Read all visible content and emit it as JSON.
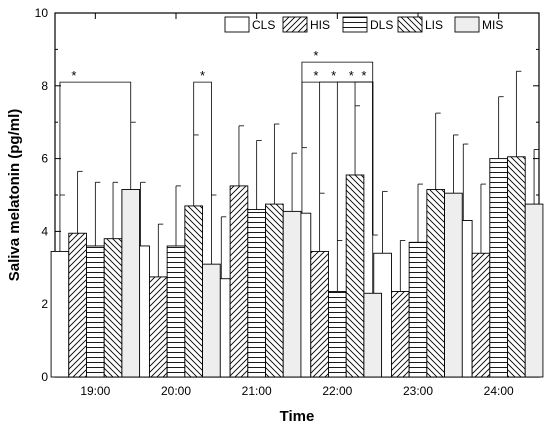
{
  "chart_data": {
    "type": "bar",
    "categories": [
      "19:00",
      "20:00",
      "21:00",
      "22:00",
      "23:00",
      "24:00"
    ],
    "series": [
      {
        "name": "CLS",
        "pattern": "blank",
        "values": [
          3.45,
          3.6,
          2.7,
          4.5,
          3.4,
          4.3
        ],
        "errors": [
          1.55,
          1.75,
          1.7,
          1.8,
          1.7,
          2.1
        ]
      },
      {
        "name": "HIS",
        "pattern": "diagonal-up",
        "values": [
          3.95,
          2.75,
          5.25,
          3.45,
          2.35,
          3.4
        ],
        "errors": [
          1.7,
          1.45,
          1.65,
          1.6,
          1.4,
          1.9
        ]
      },
      {
        "name": "DLS",
        "pattern": "horizontal",
        "values": [
          3.6,
          3.6,
          4.6,
          2.35,
          3.7,
          6.0
        ],
        "errors": [
          1.75,
          1.65,
          1.9,
          1.4,
          1.6,
          1.7
        ]
      },
      {
        "name": "LIS",
        "pattern": "diagonal-down",
        "values": [
          3.8,
          4.7,
          4.75,
          5.55,
          5.15,
          6.05
        ],
        "errors": [
          1.55,
          1.95,
          2.2,
          1.9,
          2.1,
          2.35
        ]
      },
      {
        "name": "MIS",
        "pattern": "dense-vertical",
        "values": [
          5.15,
          3.1,
          4.55,
          2.3,
          5.05,
          4.75
        ],
        "errors": [
          1.85,
          1.9,
          1.6,
          1.6,
          1.6,
          1.5
        ]
      }
    ],
    "xlabel": "Time",
    "ylabel": "Saliva melatonin (pg/ml)",
    "ylim": [
      0,
      10
    ],
    "yticks": [
      "0",
      "2",
      "4",
      "6",
      "8",
      "10"
    ],
    "legend_position": "top-right",
    "grid": false,
    "significance": [
      {
        "category": "19:00",
        "from": "CLS",
        "to": "MIS",
        "y": 8.1,
        "label": "*"
      },
      {
        "category": "20:00",
        "from": "LIS",
        "to": "MIS",
        "y": 8.1,
        "label": "*"
      },
      {
        "category": "22:00",
        "from": "CLS",
        "to": "MIS",
        "y": 8.65,
        "label": "*"
      },
      {
        "category": "22:00",
        "from": "CLS",
        "to": "MIS",
        "y": 8.1,
        "label": "*"
      },
      {
        "category": "22:00",
        "from": "HIS",
        "to": "MIS",
        "y": 8.1,
        "label": "*"
      },
      {
        "category": "22:00",
        "from": "DLS",
        "to": "MIS",
        "y": 8.1,
        "label": "*"
      },
      {
        "category": "22:00",
        "from": "LIS",
        "to": "MIS",
        "y": 8.1,
        "label": "*"
      }
    ]
  }
}
